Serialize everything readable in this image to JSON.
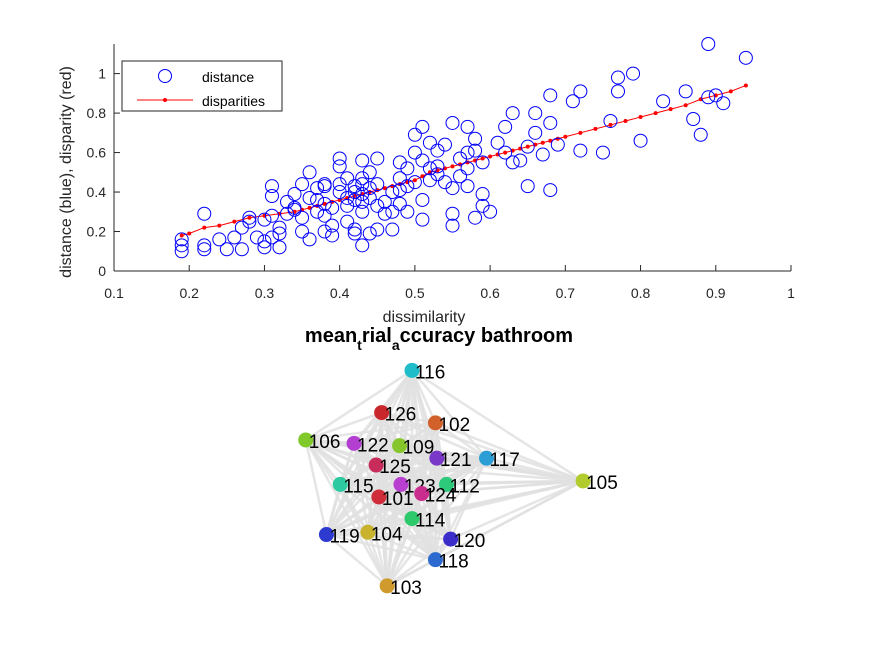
{
  "chart_data": [
    {
      "type": "scatter",
      "xlabel": "dissimilarity",
      "ylabel": "distance (blue), disparity (red)",
      "xlim": [
        0.1,
        1
      ],
      "ylim": [
        0,
        1.15
      ],
      "x_ticks": [
        "0.1",
        "0.2",
        "0.3",
        "0.4",
        "0.5",
        "0.6",
        "0.7",
        "0.8",
        "0.9",
        "1"
      ],
      "y_ticks": [
        "0",
        "0.2",
        "0.4",
        "0.6",
        "0.8",
        "1"
      ],
      "legend_position": "top-left",
      "grid": false,
      "colors": {
        "distance": "#0000ff",
        "disparities": "#ff0000"
      },
      "series": [
        {
          "name": "distance",
          "marker": "open-circle",
          "points": [
            [
              0.19,
              0.13
            ],
            [
              0.19,
              0.1
            ],
            [
              0.19,
              0.16
            ],
            [
              0.22,
              0.29
            ],
            [
              0.22,
              0.13
            ],
            [
              0.22,
              0.11
            ],
            [
              0.24,
              0.16
            ],
            [
              0.25,
              0.11
            ],
            [
              0.26,
              0.17
            ],
            [
              0.27,
              0.11
            ],
            [
              0.27,
              0.22
            ],
            [
              0.28,
              0.27
            ],
            [
              0.28,
              0.25
            ],
            [
              0.29,
              0.17
            ],
            [
              0.3,
              0.15
            ],
            [
              0.3,
              0.12
            ],
            [
              0.3,
              0.26
            ],
            [
              0.31,
              0.17
            ],
            [
              0.31,
              0.43
            ],
            [
              0.31,
              0.38
            ],
            [
              0.31,
              0.28
            ],
            [
              0.32,
              0.12
            ],
            [
              0.32,
              0.19
            ],
            [
              0.32,
              0.22
            ],
            [
              0.33,
              0.35
            ],
            [
              0.33,
              0.29
            ],
            [
              0.34,
              0.32
            ],
            [
              0.34,
              0.39
            ],
            [
              0.34,
              0.31
            ],
            [
              0.35,
              0.44
            ],
            [
              0.35,
              0.27
            ],
            [
              0.35,
              0.2
            ],
            [
              0.36,
              0.5
            ],
            [
              0.36,
              0.37
            ],
            [
              0.36,
              0.16
            ],
            [
              0.37,
              0.42
            ],
            [
              0.37,
              0.3
            ],
            [
              0.37,
              0.36
            ],
            [
              0.38,
              0.43
            ],
            [
              0.38,
              0.34
            ],
            [
              0.38,
              0.44
            ],
            [
              0.38,
              0.2
            ],
            [
              0.38,
              0.28
            ],
            [
              0.39,
              0.32
            ],
            [
              0.39,
              0.23
            ],
            [
              0.39,
              0.18
            ],
            [
              0.4,
              0.53
            ],
            [
              0.4,
              0.57
            ],
            [
              0.4,
              0.4
            ],
            [
              0.4,
              0.44
            ],
            [
              0.41,
              0.47
            ],
            [
              0.41,
              0.25
            ],
            [
              0.41,
              0.33
            ],
            [
              0.41,
              0.37
            ],
            [
              0.42,
              0.43
            ],
            [
              0.42,
              0.4
            ],
            [
              0.42,
              0.36
            ],
            [
              0.42,
              0.21
            ],
            [
              0.42,
              0.19
            ],
            [
              0.43,
              0.56
            ],
            [
              0.43,
              0.47
            ],
            [
              0.43,
              0.44
            ],
            [
              0.43,
              0.39
            ],
            [
              0.43,
              0.35
            ],
            [
              0.43,
              0.3
            ],
            [
              0.43,
              0.13
            ],
            [
              0.44,
              0.5
            ],
            [
              0.44,
              0.42
            ],
            [
              0.44,
              0.37
            ],
            [
              0.44,
              0.19
            ],
            [
              0.45,
              0.57
            ],
            [
              0.45,
              0.44
            ],
            [
              0.45,
              0.33
            ],
            [
              0.45,
              0.21
            ],
            [
              0.46,
              0.29
            ],
            [
              0.46,
              0.35
            ],
            [
              0.47,
              0.4
            ],
            [
              0.47,
              0.21
            ],
            [
              0.47,
              0.3
            ],
            [
              0.48,
              0.55
            ],
            [
              0.48,
              0.41
            ],
            [
              0.48,
              0.47
            ],
            [
              0.48,
              0.34
            ],
            [
              0.49,
              0.43
            ],
            [
              0.49,
              0.3
            ],
            [
              0.49,
              0.52
            ],
            [
              0.5,
              0.69
            ],
            [
              0.5,
              0.6
            ],
            [
              0.5,
              0.45
            ],
            [
              0.51,
              0.73
            ],
            [
              0.51,
              0.56
            ],
            [
              0.51,
              0.26
            ],
            [
              0.51,
              0.36
            ],
            [
              0.52,
              0.65
            ],
            [
              0.52,
              0.52
            ],
            [
              0.52,
              0.46
            ],
            [
              0.53,
              0.49
            ],
            [
              0.53,
              0.61
            ],
            [
              0.53,
              0.53
            ],
            [
              0.54,
              0.45
            ],
            [
              0.54,
              0.64
            ],
            [
              0.55,
              0.75
            ],
            [
              0.55,
              0.42
            ],
            [
              0.55,
              0.29
            ],
            [
              0.55,
              0.23
            ],
            [
              0.56,
              0.57
            ],
            [
              0.56,
              0.48
            ],
            [
              0.57,
              0.73
            ],
            [
              0.57,
              0.6
            ],
            [
              0.57,
              0.52
            ],
            [
              0.57,
              0.43
            ],
            [
              0.58,
              0.67
            ],
            [
              0.58,
              0.61
            ],
            [
              0.58,
              0.27
            ],
            [
              0.59,
              0.55
            ],
            [
              0.59,
              0.39
            ],
            [
              0.59,
              0.33
            ],
            [
              0.6,
              0.3
            ],
            [
              0.61,
              0.65
            ],
            [
              0.62,
              0.6
            ],
            [
              0.62,
              0.73
            ],
            [
              0.63,
              0.55
            ],
            [
              0.63,
              0.8
            ],
            [
              0.64,
              0.56
            ],
            [
              0.65,
              0.63
            ],
            [
              0.65,
              0.43
            ],
            [
              0.66,
              0.7
            ],
            [
              0.66,
              0.8
            ],
            [
              0.67,
              0.59
            ],
            [
              0.68,
              0.75
            ],
            [
              0.68,
              0.89
            ],
            [
              0.68,
              0.41
            ],
            [
              0.69,
              0.64
            ],
            [
              0.71,
              0.86
            ],
            [
              0.72,
              0.61
            ],
            [
              0.72,
              0.91
            ],
            [
              0.75,
              0.6
            ],
            [
              0.76,
              0.76
            ],
            [
              0.77,
              0.98
            ],
            [
              0.77,
              0.91
            ],
            [
              0.79,
              1.0
            ],
            [
              0.8,
              0.66
            ],
            [
              0.83,
              0.86
            ],
            [
              0.86,
              0.91
            ],
            [
              0.87,
              0.77
            ],
            [
              0.88,
              0.69
            ],
            [
              0.89,
              0.88
            ],
            [
              0.89,
              1.15
            ],
            [
              0.9,
              0.89
            ],
            [
              0.91,
              0.85
            ],
            [
              0.94,
              1.08
            ]
          ]
        },
        {
          "name": "disparities",
          "marker": "dot-line",
          "points": [
            [
              0.19,
              0.18
            ],
            [
              0.2,
              0.19
            ],
            [
              0.22,
              0.22
            ],
            [
              0.24,
              0.23
            ],
            [
              0.26,
              0.25
            ],
            [
              0.28,
              0.27
            ],
            [
              0.3,
              0.28
            ],
            [
              0.32,
              0.29
            ],
            [
              0.34,
              0.3
            ],
            [
              0.35,
              0.31
            ],
            [
              0.36,
              0.32
            ],
            [
              0.37,
              0.33
            ],
            [
              0.38,
              0.34
            ],
            [
              0.39,
              0.35
            ],
            [
              0.4,
              0.36
            ],
            [
              0.41,
              0.37
            ],
            [
              0.42,
              0.38
            ],
            [
              0.43,
              0.39
            ],
            [
              0.44,
              0.4
            ],
            [
              0.45,
              0.41
            ],
            [
              0.46,
              0.42
            ],
            [
              0.47,
              0.43
            ],
            [
              0.48,
              0.44
            ],
            [
              0.49,
              0.45
            ],
            [
              0.5,
              0.46
            ],
            [
              0.51,
              0.48
            ],
            [
              0.52,
              0.5
            ],
            [
              0.53,
              0.51
            ],
            [
              0.54,
              0.52
            ],
            [
              0.55,
              0.53
            ],
            [
              0.56,
              0.54
            ],
            [
              0.57,
              0.55
            ],
            [
              0.58,
              0.56
            ],
            [
              0.59,
              0.57
            ],
            [
              0.6,
              0.58
            ],
            [
              0.61,
              0.59
            ],
            [
              0.62,
              0.6
            ],
            [
              0.63,
              0.61
            ],
            [
              0.64,
              0.62
            ],
            [
              0.65,
              0.63
            ],
            [
              0.66,
              0.64
            ],
            [
              0.67,
              0.65
            ],
            [
              0.68,
              0.66
            ],
            [
              0.69,
              0.67
            ],
            [
              0.7,
              0.68
            ],
            [
              0.72,
              0.7
            ],
            [
              0.74,
              0.72
            ],
            [
              0.76,
              0.74
            ],
            [
              0.78,
              0.76
            ],
            [
              0.8,
              0.78
            ],
            [
              0.82,
              0.8
            ],
            [
              0.84,
              0.82
            ],
            [
              0.86,
              0.84
            ],
            [
              0.88,
              0.87
            ],
            [
              0.9,
              0.89
            ],
            [
              0.92,
              0.91
            ],
            [
              0.94,
              0.94
            ]
          ]
        }
      ]
    },
    {
      "type": "network",
      "title_parts": [
        {
          "text": "mean",
          "sub": false
        },
        {
          "text": "t",
          "sub": true
        },
        {
          "text": "rial",
          "sub": false
        },
        {
          "text": "a",
          "sub": true
        },
        {
          "text": "ccuracy bathroom",
          "sub": false
        }
      ],
      "edge_color": "#e0e0e0",
      "nodes": [
        {
          "label": "116",
          "pos": [
            0.0,
            -0.9
          ],
          "color": "#1fbcc9"
        },
        {
          "label": "126",
          "pos": [
            -0.22,
            -0.53
          ],
          "color": "#c8282c"
        },
        {
          "label": "102",
          "pos": [
            0.17,
            -0.44
          ],
          "color": "#d2602a"
        },
        {
          "label": "106",
          "pos": [
            -0.77,
            -0.29
          ],
          "color": "#7fc92a"
        },
        {
          "label": "122",
          "pos": [
            -0.42,
            -0.26
          ],
          "color": "#b23fd0"
        },
        {
          "label": "109",
          "pos": [
            -0.09,
            -0.24
          ],
          "color": "#86c62d"
        },
        {
          "label": "121",
          "pos": [
            0.18,
            -0.13
          ],
          "color": "#7a38c8"
        },
        {
          "label": "117",
          "pos": [
            0.54,
            -0.13
          ],
          "color": "#2c9ed6"
        },
        {
          "label": "125",
          "pos": [
            -0.26,
            -0.07
          ],
          "color": "#c82c5a"
        },
        {
          "label": "115",
          "pos": [
            -0.52,
            0.1
          ],
          "color": "#2dc9a0"
        },
        {
          "label": "123",
          "pos": [
            -0.08,
            0.1
          ],
          "color": "#b83fd0"
        },
        {
          "label": "112",
          "pos": [
            0.25,
            0.1
          ],
          "color": "#2dc97a"
        },
        {
          "label": "105",
          "pos": [
            1.24,
            0.07
          ],
          "color": "#b3cc2d"
        },
        {
          "label": "101",
          "pos": [
            -0.24,
            0.21
          ],
          "color": "#d02d3a"
        },
        {
          "label": "124",
          "pos": [
            0.07,
            0.18
          ],
          "color": "#c92d8e"
        },
        {
          "label": "114",
          "pos": [
            0.0,
            0.4
          ],
          "color": "#2dc96a"
        },
        {
          "label": "119",
          "pos": [
            -0.62,
            0.54
          ],
          "color": "#2d3ad0"
        },
        {
          "label": "104",
          "pos": [
            -0.32,
            0.52
          ],
          "color": "#c9b32d"
        },
        {
          "label": "120",
          "pos": [
            0.28,
            0.58
          ],
          "color": "#3a2dc9"
        },
        {
          "label": "118",
          "pos": [
            0.17,
            0.76
          ],
          "color": "#2d6ad0"
        },
        {
          "label": "103",
          "pos": [
            -0.18,
            0.99
          ],
          "color": "#d09a2d"
        }
      ]
    }
  ]
}
